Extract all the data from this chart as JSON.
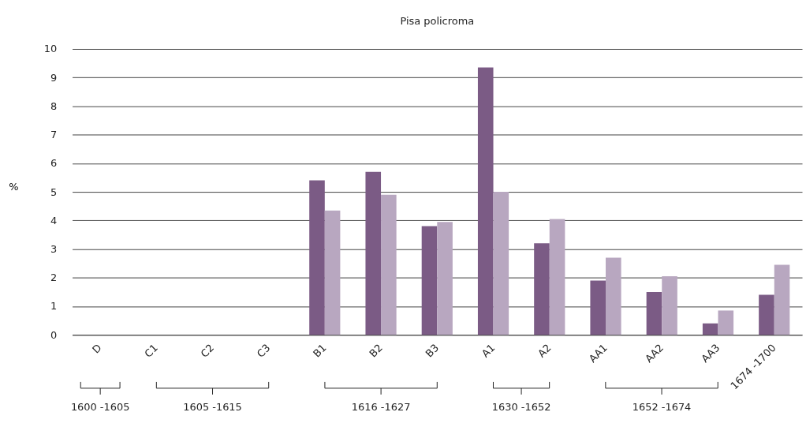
{
  "chart_data": {
    "type": "bar",
    "title": "Pisa policroma",
    "ylabel": "%",
    "categories": [
      "D",
      "C1",
      "C2",
      "C3",
      "B1",
      "B2",
      "B3",
      "A1",
      "A2",
      "AA1",
      "AA2",
      "AA3",
      "1674 -1700"
    ],
    "series": [
      {
        "color": "#7b5b85",
        "values": [
          0,
          0,
          0,
          0,
          5.4,
          5.7,
          3.8,
          9.35,
          3.2,
          1.9,
          1.5,
          0.4,
          1.4
        ]
      },
      {
        "color": "#b8a7c0",
        "values": [
          0,
          0,
          0,
          0,
          4.35,
          4.9,
          3.95,
          5.0,
          4.05,
          2.7,
          2.05,
          0.85,
          2.45
        ]
      }
    ],
    "ylim": [
      0,
      10
    ],
    "yticks": [
      0,
      1,
      2,
      3,
      4,
      5,
      6,
      7,
      8,
      9,
      10
    ],
    "grid": "y",
    "legend": false,
    "annotations": [
      "1600 -1605",
      "1605 -1615",
      "1616 -1627",
      "1630 -1652",
      "1652 -1674"
    ]
  }
}
